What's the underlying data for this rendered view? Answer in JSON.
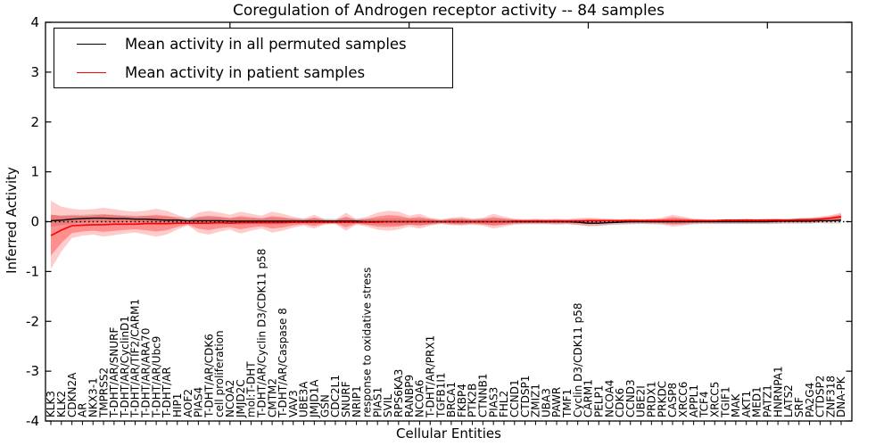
{
  "title": "Coregulation of Androgen receptor activity -- 84 samples",
  "axes": {
    "ylabel": "Inferred Activity",
    "xlabel": "Cellular Entities",
    "ytick_labels": [
      "4",
      "3",
      "2",
      "1",
      "0",
      "-1",
      "-2",
      "-3",
      "-4"
    ]
  },
  "legend": {
    "items": [
      {
        "label": "Mean activity in all permuted samples",
        "color": "#000000"
      },
      {
        "label": "Mean activity in patient samples",
        "color": "#ff0000"
      }
    ]
  },
  "colors": {
    "frame": "#000000",
    "zero_line": "#000000",
    "permuted_line": "#000000",
    "patient_line": "#ff0000",
    "patient_band_outer": "rgba(255,0,0,0.20)",
    "patient_band_inner": "rgba(255,0,0,0.30)",
    "permuted_band": "rgba(0,0,0,0.13)"
  },
  "chart_data": {
    "type": "line",
    "title": "Coregulation of Androgen receptor activity -- 84 samples",
    "xlabel": "Cellular Entities",
    "ylabel": "Inferred Activity",
    "ylim": [
      -4,
      4
    ],
    "yticks": [
      4,
      3,
      2,
      1,
      0,
      -1,
      -2,
      -3,
      -4
    ],
    "grid": false,
    "legend_position": "upper left",
    "zero_line": {
      "y": 0,
      "style": "dotted",
      "color": "#000000"
    },
    "categories": [
      "KLK3",
      "KLK2",
      "CDKN2A",
      "AR",
      "NKX3-1",
      "TMPRSS2",
      "T-DHT/AR/SNURF",
      "T-DHT/AR/CyclinD1",
      "T-DHT/AR/TIF2/CARM1",
      "T-DHT/AR/ARA70",
      "T-DHT/AR/Ubc9",
      "T-DHT/AR",
      "HIP1",
      "AOF2",
      "PIAS4",
      "T-DHT/AR/CDK6",
      "cell proliferation",
      "NCOA2",
      "JMJD2C",
      "mol:T-DHT",
      "T-DHT/AR/Cyclin D3/CDK11 p58",
      "CMTM2",
      "T-DHT/AR/Caspase 8",
      "VAV3",
      "UBE3A",
      "JMJD1A",
      "GSN",
      "CDC2L1",
      "SNURF",
      "NRIP1",
      "response to oxidative stress",
      "PIAS1",
      "SVIL",
      "RPS6KA3",
      "RANBP9",
      "NCOA6",
      "T-DHT/AR/PRX1",
      "TGFB1I1",
      "BRCA1",
      "FKBP4",
      "PTK2B",
      "CTNNB1",
      "PIAS3",
      "FHL2",
      "CCND1",
      "CTDSP1",
      "ZMIZ1",
      "UBA3",
      "PAWR",
      "TMF1",
      "Cyclin D3/CDK11 p58",
      "CARM1",
      "PELP1",
      "NCOA4",
      "CDK6",
      "CCND3",
      "UBE2I",
      "PRDX1",
      "PRKDC",
      "CASP8",
      "XRCC6",
      "APPL1",
      "TCF4",
      "XRCC5",
      "TGIF1",
      "MAK",
      "AKT1",
      "MED1",
      "PATZ1",
      "HNRNPA1",
      "LATS2",
      "SRF",
      "PA2G4",
      "CTDSP2",
      "ZNF318",
      "DNA-PK"
    ],
    "series": [
      {
        "name": "Mean activity in all permuted samples",
        "color": "#000000",
        "values": [
          0.02,
          0.03,
          0.05,
          0.06,
          0.07,
          0.07,
          0.06,
          0.06,
          0.05,
          0.05,
          0.04,
          0.03,
          0.03,
          0.02,
          0.02,
          0.02,
          0.02,
          0.01,
          0.01,
          0.01,
          0.01,
          0.01,
          0.01,
          0.01,
          0.01,
          0.01,
          0.01,
          0.01,
          0.01,
          0.01,
          0.0,
          0.0,
          0.0,
          0.0,
          0.0,
          0.0,
          0.0,
          0.0,
          0.0,
          0.0,
          0.0,
          0.0,
          0.0,
          0.0,
          0.0,
          0.0,
          0.0,
          0.0,
          0.0,
          0.0,
          -0.01,
          -0.03,
          -0.03,
          -0.02,
          -0.01,
          0.0,
          0.0,
          0.0,
          0.0,
          0.0,
          0.0,
          0.0,
          0.0,
          0.0,
          0.0,
          0.0,
          0.0,
          0.0,
          0.0,
          0.01,
          0.01,
          0.01,
          0.01,
          0.02,
          0.02,
          0.03
        ]
      },
      {
        "name": "Mean activity in patient samples",
        "color": "#ff0000",
        "values": [
          -0.28,
          -0.17,
          -0.08,
          -0.07,
          -0.06,
          -0.06,
          -0.05,
          -0.05,
          -0.05,
          -0.04,
          -0.04,
          -0.04,
          -0.03,
          -0.03,
          -0.03,
          -0.03,
          -0.02,
          -0.03,
          -0.02,
          -0.02,
          -0.02,
          -0.02,
          -0.02,
          -0.01,
          -0.01,
          -0.01,
          -0.01,
          -0.01,
          -0.01,
          -0.01,
          -0.01,
          -0.01,
          0.0,
          0.0,
          0.0,
          0.0,
          0.0,
          0.0,
          0.0,
          0.0,
          0.0,
          0.0,
          0.0,
          0.0,
          0.01,
          0.01,
          0.01,
          0.01,
          0.01,
          0.01,
          0.01,
          0.02,
          0.02,
          0.02,
          0.02,
          0.02,
          0.02,
          0.02,
          0.02,
          0.02,
          0.02,
          0.02,
          0.02,
          0.02,
          0.03,
          0.03,
          0.03,
          0.03,
          0.03,
          0.03,
          0.03,
          0.04,
          0.04,
          0.05,
          0.07,
          0.1
        ]
      }
    ],
    "bands": [
      {
        "name": "patient-confidence-outer",
        "top": [
          0.42,
          0.3,
          0.26,
          0.24,
          0.25,
          0.28,
          0.25,
          0.22,
          0.2,
          0.22,
          0.26,
          0.22,
          0.14,
          0.06,
          0.18,
          0.22,
          0.18,
          0.14,
          0.2,
          0.16,
          0.12,
          0.2,
          0.16,
          0.1,
          0.06,
          0.14,
          0.05,
          0.04,
          0.18,
          0.05,
          0.1,
          0.18,
          0.22,
          0.2,
          0.12,
          0.16,
          0.08,
          0.04,
          0.08,
          0.1,
          0.06,
          0.08,
          0.16,
          0.1,
          0.06,
          0.05,
          0.06,
          0.05,
          0.06,
          0.05,
          0.07,
          0.08,
          0.07,
          0.06,
          0.05,
          0.06,
          0.05,
          0.06,
          0.08,
          0.14,
          0.1,
          0.06,
          0.05,
          0.04,
          0.05,
          0.05,
          0.06,
          0.05,
          0.06,
          0.06,
          0.05,
          0.07,
          0.08,
          0.1,
          0.13,
          0.18
        ],
        "bottom": [
          -0.95,
          -0.6,
          -0.33,
          -0.28,
          -0.26,
          -0.3,
          -0.27,
          -0.24,
          -0.22,
          -0.26,
          -0.3,
          -0.26,
          -0.16,
          -0.08,
          -0.22,
          -0.26,
          -0.2,
          -0.16,
          -0.24,
          -0.18,
          -0.14,
          -0.22,
          -0.18,
          -0.12,
          -0.08,
          -0.14,
          -0.06,
          -0.05,
          -0.18,
          -0.06,
          -0.1,
          -0.16,
          -0.18,
          -0.16,
          -0.1,
          -0.14,
          -0.08,
          -0.04,
          -0.07,
          -0.08,
          -0.06,
          -0.08,
          -0.14,
          -0.1,
          -0.06,
          -0.05,
          -0.05,
          -0.05,
          -0.06,
          -0.05,
          -0.07,
          -0.09,
          -0.08,
          -0.06,
          -0.05,
          -0.05,
          -0.04,
          -0.05,
          -0.06,
          -0.1,
          -0.08,
          -0.05,
          -0.04,
          -0.04,
          -0.04,
          -0.04,
          -0.04,
          -0.04,
          -0.04,
          -0.04,
          -0.03,
          -0.03,
          -0.03,
          -0.02,
          -0.01,
          0.0
        ]
      },
      {
        "name": "patient-confidence-inner",
        "inner_fraction_of_outer": 0.6
      },
      {
        "name": "permuted-confidence",
        "half_width": [
          0.12,
          0.1,
          0.09,
          0.08,
          0.08,
          0.08,
          0.08,
          0.07,
          0.07,
          0.07,
          0.07,
          0.07,
          0.07,
          0.06,
          0.07,
          0.07,
          0.07,
          0.06,
          0.07,
          0.06,
          0.06,
          0.07,
          0.06,
          0.06,
          0.05,
          0.06,
          0.05,
          0.05,
          0.06,
          0.05,
          0.06,
          0.06,
          0.07,
          0.07,
          0.06,
          0.06,
          0.06,
          0.05,
          0.06,
          0.06,
          0.05,
          0.06,
          0.06,
          0.06,
          0.05,
          0.05,
          0.05,
          0.05,
          0.05,
          0.05,
          0.05,
          0.06,
          0.06,
          0.05,
          0.05,
          0.05,
          0.05,
          0.05,
          0.05,
          0.06,
          0.06,
          0.05,
          0.05,
          0.05,
          0.05,
          0.05,
          0.05,
          0.05,
          0.05,
          0.05,
          0.05,
          0.05,
          0.05,
          0.05,
          0.06,
          0.07
        ]
      }
    ]
  }
}
